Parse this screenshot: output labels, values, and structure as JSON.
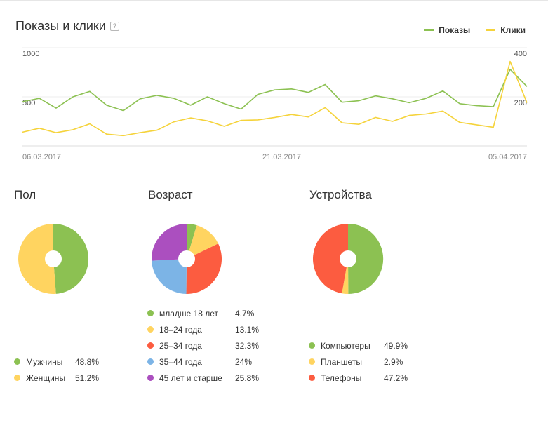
{
  "header": {
    "title": "Показы и клики",
    "help_symbol": "?",
    "legend": [
      {
        "label": "Показы",
        "color": "#8cc152"
      },
      {
        "label": "Клики",
        "color": "#f5d33b"
      }
    ]
  },
  "chart_data": [
    {
      "type": "line",
      "x_tick_labels": [
        "06.03.2017",
        "21.03.2017",
        "05.04.2017"
      ],
      "left_axis_ticks": [
        "1000",
        "500"
      ],
      "right_axis_ticks": [
        "400",
        "200"
      ],
      "left_ylim": [
        0,
        1000
      ],
      "right_ylim": [
        0,
        400
      ],
      "grid": true,
      "legend_position": "top-right",
      "series": [
        {
          "name": "Показы",
          "color": "#8cc152",
          "axis": "left",
          "values": [
            450,
            485,
            385,
            500,
            555,
            415,
            360,
            480,
            515,
            485,
            415,
            500,
            430,
            375,
            525,
            570,
            580,
            545,
            625,
            445,
            460,
            510,
            480,
            440,
            485,
            560,
            430,
            410,
            400,
            780,
            605
          ]
        },
        {
          "name": "Клики",
          "color": "#f5d33b",
          "axis": "left",
          "values": [
            140,
            180,
            135,
            165,
            225,
            120,
            105,
            135,
            160,
            245,
            285,
            255,
            200,
            260,
            265,
            290,
            320,
            295,
            390,
            235,
            220,
            290,
            250,
            310,
            325,
            355,
            240,
            215,
            190,
            860,
            440
          ]
        }
      ]
    },
    {
      "type": "pie",
      "title": "Пол",
      "slices": [
        {
          "label": "Мужчины",
          "value": 48.8,
          "display": "48.8%",
          "color": "#8cc152"
        },
        {
          "label": "Женщины",
          "value": 51.2,
          "display": "51.2%",
          "color": "#ffd460"
        }
      ]
    },
    {
      "type": "pie",
      "title": "Возраст",
      "slices": [
        {
          "label": "младше 18 лет",
          "value": 4.7,
          "display": "4.7%",
          "color": "#8cc152"
        },
        {
          "label": "18–24 года",
          "value": 13.1,
          "display": "13.1%",
          "color": "#ffd460"
        },
        {
          "label": "25–34 года",
          "value": 32.3,
          "display": "32.3%",
          "color": "#fc5c40"
        },
        {
          "label": "35–44 года",
          "value": 24,
          "display": "24%",
          "color": "#7cb4e6"
        },
        {
          "label": "45 лет и старше",
          "value": 25.8,
          "display": "25.8%",
          "color": "#ab4fbf"
        }
      ]
    },
    {
      "type": "pie",
      "title": "Устройства",
      "slices": [
        {
          "label": "Компьютеры",
          "value": 49.9,
          "display": "49.9%",
          "color": "#8cc152"
        },
        {
          "label": "Планшеты",
          "value": 2.9,
          "display": "2.9%",
          "color": "#ffd460"
        },
        {
          "label": "Телефоны",
          "value": 47.2,
          "display": "47.2%",
          "color": "#fc5c40"
        }
      ]
    }
  ]
}
